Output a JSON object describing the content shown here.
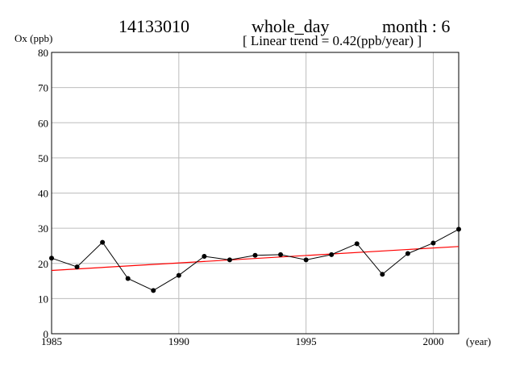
{
  "header": {
    "station": "14133010",
    "period": "whole_day",
    "month_label": "month : 6",
    "trend_label": "[ Linear trend = 0.42(ppb/year) ]"
  },
  "chart_data": {
    "type": "line",
    "title": "",
    "ylabel": "Ox (ppb)",
    "xlabel": "(year)",
    "xlim": [
      1985,
      2001
    ],
    "ylim": [
      0,
      80
    ],
    "x_ticks": [
      1985,
      1990,
      1995,
      2000
    ],
    "y_ticks": [
      0,
      10,
      20,
      30,
      40,
      50,
      60,
      70,
      80
    ],
    "grid": true,
    "series": [
      {
        "color": "#000000",
        "x": [
          1985,
          1986,
          1987,
          1988,
          1989,
          1990,
          1991,
          1992,
          1993,
          1994,
          1995,
          1996,
          1997,
          1998,
          1999,
          2000,
          2001
        ],
        "values": [
          21.5,
          19.0,
          26.0,
          15.7,
          12.3,
          16.6,
          22.0,
          21.0,
          22.3,
          22.5,
          21.0,
          22.5,
          25.6,
          16.9,
          22.8,
          25.8,
          29.7
        ]
      }
    ],
    "trend_line": {
      "color": "#ff0000",
      "x": [
        1985,
        2001
      ],
      "values": [
        18.0,
        24.8
      ]
    }
  }
}
